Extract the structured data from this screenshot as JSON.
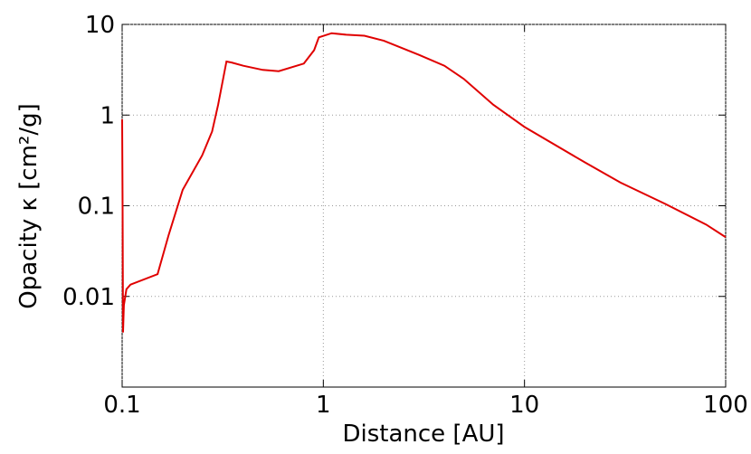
{
  "chart_data": {
    "type": "line",
    "xlabel": "Distance [AU]",
    "ylabel": "Opacity κ [cm²/g]",
    "log_x": true,
    "log_y": true,
    "grid": true,
    "xlim": [
      0.1,
      100
    ],
    "ylim": [
      0.001,
      10
    ],
    "xticks": [
      0.1,
      1,
      10,
      100
    ],
    "yticks": [
      0.01,
      0.1,
      1,
      10
    ],
    "series": [
      {
        "color": "#e00000",
        "x": [
          0.1,
          0.1005,
          0.101,
          0.102,
          0.105,
          0.11,
          0.15,
          0.17,
          0.2,
          0.25,
          0.28,
          0.3,
          0.33,
          0.35,
          0.4,
          0.5,
          0.6,
          0.8,
          0.9,
          0.95,
          1.1,
          1.3,
          1.6,
          2,
          3,
          4,
          5,
          7,
          10,
          20,
          30,
          50,
          80,
          100
        ],
        "values": [
          0.9,
          0.1,
          0.004,
          0.008,
          0.012,
          0.0135,
          0.0176,
          0.047,
          0.15,
          0.36,
          0.66,
          1.3,
          3.9,
          3.8,
          3.5,
          3.15,
          3.05,
          3.7,
          5.2,
          7.2,
          8.0,
          7.7,
          7.5,
          6.6,
          4.6,
          3.5,
          2.5,
          1.3,
          0.74,
          0.3,
          0.18,
          0.105,
          0.062,
          0.045
        ]
      }
    ]
  }
}
